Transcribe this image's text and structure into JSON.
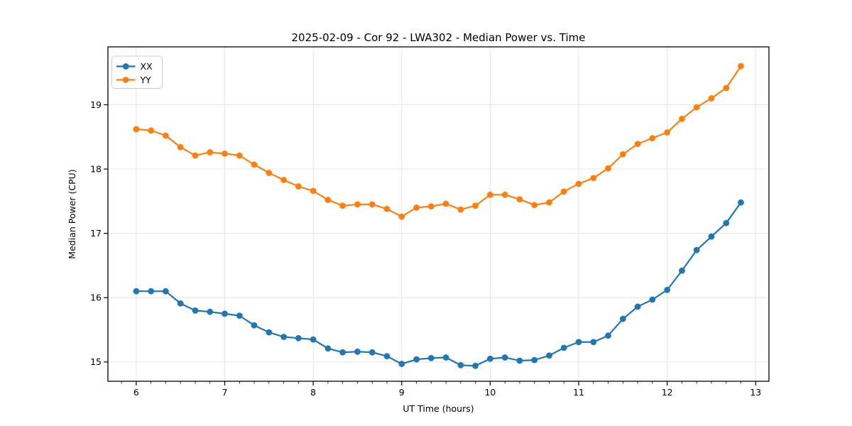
{
  "figure": {
    "background_color": "#ffffff",
    "text_color": "#000000",
    "grid_color": "#e4e4e4"
  },
  "chart_data": {
    "type": "line",
    "title": "2025-02-09 - Cor 92 - LWA302 - Median Power vs. Time",
    "xlabel": "UT Time (hours)",
    "ylabel": "Median Power (CPU)",
    "xlim": [
      5.68,
      13.15
    ],
    "ylim": [
      14.7,
      19.9
    ],
    "x_ticks": [
      6,
      7,
      8,
      9,
      10,
      11,
      12,
      13
    ],
    "y_ticks": [
      15,
      16,
      17,
      18,
      19
    ],
    "minor_x_tick_step": 0.16667,
    "grid": true,
    "legend_position": "upper-left",
    "marker": "circle",
    "x": [
      6.0,
      6.167,
      6.333,
      6.5,
      6.667,
      6.833,
      7.0,
      7.167,
      7.333,
      7.5,
      7.667,
      7.833,
      8.0,
      8.167,
      8.333,
      8.5,
      8.667,
      8.833,
      9.0,
      9.167,
      9.333,
      9.5,
      9.667,
      9.833,
      10.0,
      10.167,
      10.333,
      10.5,
      10.667,
      10.833,
      11.0,
      11.167,
      11.333,
      11.5,
      11.667,
      11.833,
      12.0,
      12.167,
      12.333,
      12.5,
      12.667,
      12.833
    ],
    "series": [
      {
        "name": "XX",
        "color": "#1f77b4",
        "values": [
          16.1,
          16.1,
          16.1,
          15.91,
          15.8,
          15.78,
          15.75,
          15.72,
          15.57,
          15.46,
          15.39,
          15.37,
          15.35,
          15.21,
          15.15,
          15.16,
          15.15,
          15.09,
          14.97,
          15.04,
          15.06,
          15.07,
          14.95,
          14.94,
          15.05,
          15.07,
          15.02,
          15.03,
          15.1,
          15.22,
          15.31,
          15.31,
          15.41,
          15.67,
          15.86,
          15.97,
          16.12,
          16.42,
          16.74,
          16.95,
          17.16,
          17.48
        ]
      },
      {
        "name": "YY",
        "color": "#ff7f0e",
        "values": [
          18.62,
          18.6,
          18.52,
          18.34,
          18.21,
          18.26,
          18.24,
          18.21,
          18.07,
          17.94,
          17.83,
          17.73,
          17.66,
          17.52,
          17.43,
          17.45,
          17.45,
          17.38,
          17.26,
          17.4,
          17.42,
          17.46,
          17.37,
          17.43,
          17.6,
          17.6,
          17.53,
          17.44,
          17.48,
          17.65,
          17.77,
          17.86,
          18.01,
          18.23,
          18.39,
          18.48,
          18.57,
          18.78,
          18.96,
          19.1,
          19.26,
          19.6
        ]
      }
    ]
  }
}
